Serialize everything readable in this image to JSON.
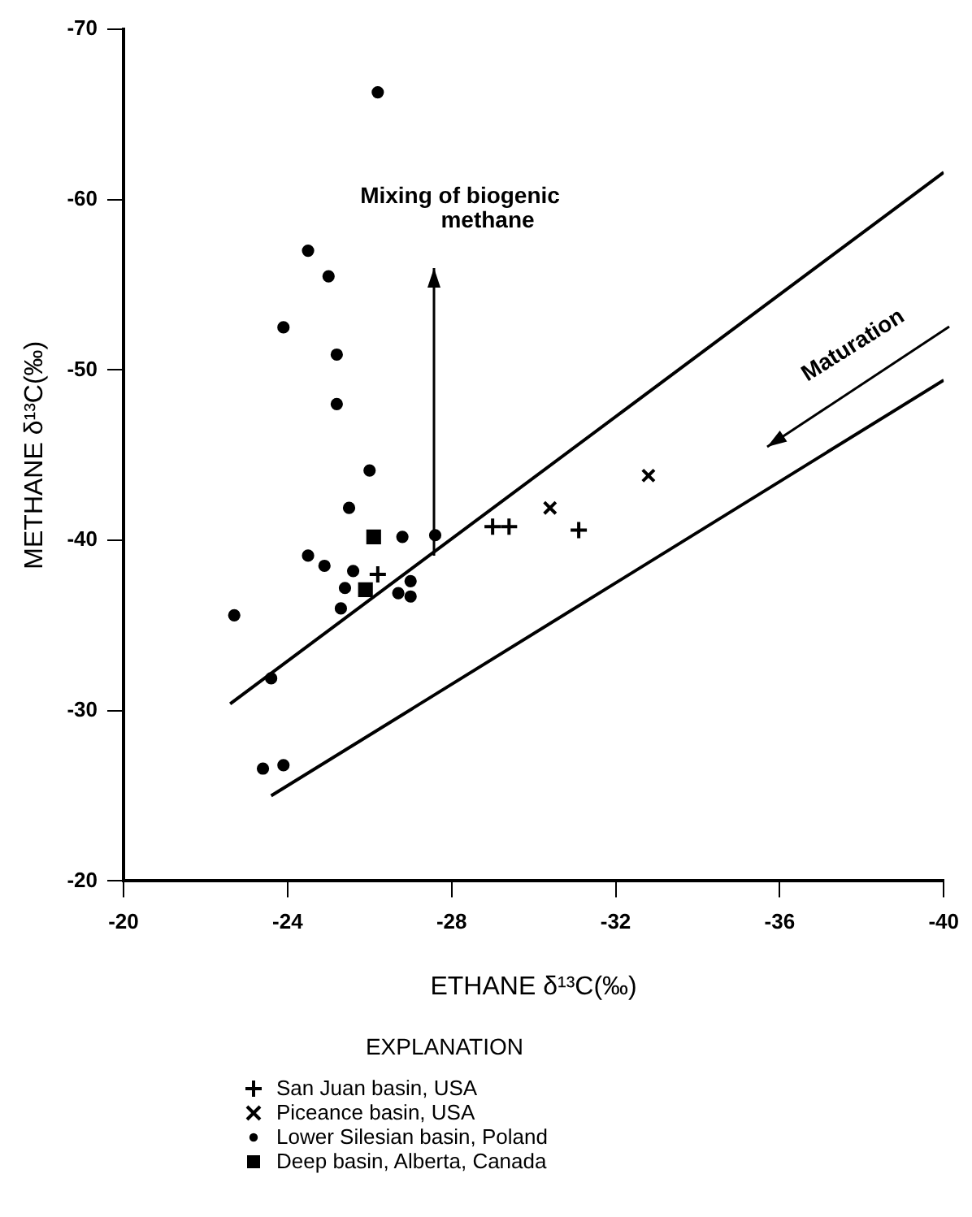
{
  "chart_data": {
    "type": "scatter",
    "xlabel": "ETHANE δ¹³C(‰)",
    "ylabel": "METHANE δ¹³C(‰)",
    "legend_title": "EXPLANATION",
    "xlim": [
      -20,
      -40
    ],
    "xticks": [
      -20,
      -24,
      -28,
      -32,
      -36,
      -40
    ],
    "ylim": [
      -20,
      -70
    ],
    "yticks": [
      -20,
      -30,
      -40,
      -50,
      -60,
      -70
    ],
    "grid": false,
    "legend": "bottom",
    "annotations": [
      "Mixing of biogenic methane",
      "Maturation"
    ],
    "series": [
      {
        "name": "San Juan basin, USA",
        "color": "#000000",
        "marker": "plus",
        "x": [
          -26.2,
          -29.0,
          -29.4,
          -31.1
        ],
        "values": [
          -38.0,
          -40.8,
          -40.8,
          -40.6
        ]
      },
      {
        "name": "Piceance basin, USA",
        "color": "#000000",
        "marker": "cross",
        "x": [
          -30.4,
          -32.8
        ],
        "values": [
          -41.9,
          -43.8
        ]
      },
      {
        "name": "Lower Silesian basin, Poland",
        "color": "#000000",
        "marker": "circle",
        "x": [
          -26.2,
          -24.5,
          -25.0,
          -23.9,
          -25.2,
          -25.2,
          -26.0,
          -25.5,
          -26.8,
          -27.6,
          -24.5,
          -24.9,
          -25.6,
          -27.0,
          -25.4,
          -26.7,
          -27.0,
          -25.3,
          -22.7,
          -23.6,
          -23.4,
          -23.9
        ],
        "values": [
          -66.3,
          -57.0,
          -55.5,
          -52.5,
          -50.9,
          -48.0,
          -44.1,
          -41.9,
          -40.2,
          -40.3,
          -39.1,
          -38.5,
          -38.2,
          -37.6,
          -37.2,
          -36.9,
          -36.7,
          -36.0,
          -35.6,
          -31.9,
          -26.6,
          -26.8
        ]
      },
      {
        "name": "Deep basin, Alberta, Canada",
        "color": "#000000",
        "marker": "square",
        "x": [
          -26.1,
          -25.9
        ],
        "values": [
          -40.2,
          -37.1
        ]
      },
      {
        "type": "line",
        "color": "#000000",
        "marker": "none",
        "line_style": "solid",
        "x": [
          -22.6,
          -40.0
        ],
        "values": [
          -30.4,
          -61.6
        ]
      },
      {
        "type": "line",
        "color": "#000000",
        "marker": "none",
        "line_style": "solid",
        "x": [
          -23.6,
          -40.0
        ],
        "values": [
          -25.0,
          -49.4
        ]
      }
    ]
  }
}
